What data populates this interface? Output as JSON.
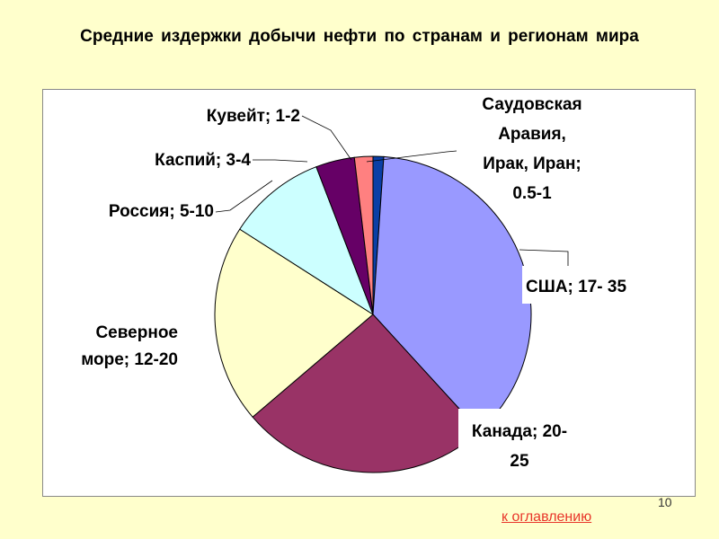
{
  "slide": {
    "title": "Средние издержки добычи нефти по странам и регионам мира",
    "page_number": "10",
    "toc_link": "к оглавлению"
  },
  "chart_data": {
    "type": "pie",
    "title": "Средние издержки добычи нефти по странам и регионам мира",
    "legend": "none",
    "slices": [
      {
        "label": [
          "Саудовская",
          "Аравия,",
          "Ирак, Иран;",
          "0.5-1"
        ],
        "value": 1.1,
        "color": "#0A3FA6"
      },
      {
        "label": [
          "США; 17- 35"
        ],
        "value": 37.5,
        "color": "#9999FF"
      },
      {
        "label": [
          "Канада; 20-",
          "25"
        ],
        "value": 25.8,
        "color": "#993366"
      },
      {
        "label": [
          "Северное",
          "море; 12-20"
        ],
        "value": 20.5,
        "color": "#FFFFCC"
      },
      {
        "label": [
          "Россия; 5-10"
        ],
        "value": 10.2,
        "color": "#CCFFFF"
      },
      {
        "label": [
          "Каспий; 3-4"
        ],
        "value": 4.0,
        "color": "#660066"
      },
      {
        "label": [
          "Кувейт; 1-2"
        ],
        "value": 1.9,
        "color": "#FF8080"
      }
    ]
  }
}
